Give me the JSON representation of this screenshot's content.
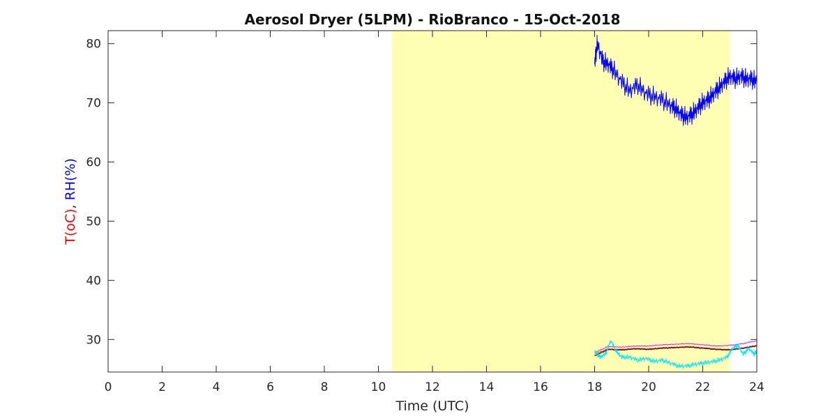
{
  "chart_data": {
    "type": "line",
    "title": "Aerosol Dryer (5LPM) - RioBranco - 15-Oct-2018",
    "xlabel": "Time (UTC)",
    "ylabel_parts": [
      {
        "text": "T(oC)",
        "color": "#ff0000"
      },
      {
        "text": ", ",
        "color": "#262626"
      },
      {
        "text": "RH(%)",
        "color": "#0000ff"
      }
    ],
    "xlim": [
      0,
      24
    ],
    "ylim": [
      24.5,
      82.2
    ],
    "x_ticks": [
      "0",
      "2",
      "4",
      "6",
      "8",
      "10",
      "12",
      "14",
      "16",
      "18",
      "20",
      "22",
      "24"
    ],
    "y_ticks": [
      "30",
      "40",
      "50",
      "60",
      "70",
      "80"
    ],
    "grid": false,
    "shaded_span": {
      "x": [
        10.5,
        23.0
      ],
      "color": "#ffffb3"
    },
    "series": [
      {
        "color": "#0000ff",
        "x": [
          18.0,
          18.1,
          18.3,
          18.5,
          18.7,
          19.0,
          19.3,
          19.6,
          19.9,
          20.2,
          20.5,
          20.8,
          21.0,
          21.2,
          21.4,
          21.6,
          21.8,
          22.0,
          22.2,
          22.4,
          22.6,
          22.8,
          23.0,
          23.2,
          23.4,
          23.6,
          23.8,
          24.0
        ],
        "y": [
          76.5,
          80.0,
          77.0,
          76.5,
          75.5,
          73.5,
          72.0,
          73.0,
          71.5,
          71.0,
          70.5,
          69.5,
          69.0,
          68.0,
          67.5,
          68.0,
          69.0,
          70.0,
          70.5,
          71.5,
          72.5,
          73.5,
          74.5,
          74.0,
          74.5,
          74.0,
          74.0,
          73.5
        ]
      },
      {
        "color": "#ff00ff",
        "x": [
          18.0,
          18.5,
          19.0,
          19.5,
          20.0,
          20.5,
          21.0,
          21.5,
          22.0,
          22.5,
          23.0,
          23.5,
          24.0
        ],
        "y": [
          27.8,
          28.8,
          28.7,
          28.9,
          28.9,
          29.1,
          29.2,
          29.3,
          29.1,
          28.9,
          29.0,
          29.3,
          29.8
        ]
      },
      {
        "color": "#000000",
        "x": [
          18.0,
          18.5,
          19.0,
          19.5,
          20.0,
          20.5,
          21.0,
          21.5,
          22.0,
          22.5,
          23.0,
          23.5,
          24.0
        ],
        "y": [
          27.2,
          28.3,
          28.2,
          28.4,
          28.3,
          28.5,
          28.6,
          28.7,
          28.5,
          28.3,
          28.2,
          28.5,
          28.9
        ]
      },
      {
        "color": "#e00000",
        "x": [
          18.0,
          18.5,
          19.0,
          19.5,
          20.0,
          20.5,
          21.0,
          21.5,
          22.0,
          22.5,
          23.0,
          23.5,
          24.0
        ],
        "y": [
          27.5,
          28.4,
          28.3,
          28.5,
          28.4,
          28.6,
          28.7,
          28.8,
          28.6,
          28.4,
          28.3,
          28.6,
          29.0
        ]
      },
      {
        "color": "#00e5ff",
        "x": [
          18.0,
          18.2,
          18.4,
          18.6,
          18.8,
          19.0,
          19.3,
          19.6,
          19.9,
          20.2,
          20.5,
          20.8,
          21.1,
          21.4,
          21.7,
          22.0,
          22.3,
          22.6,
          22.9,
          23.1,
          23.3,
          23.5,
          23.7,
          23.9,
          24.0
        ],
        "y": [
          28.0,
          27.0,
          27.5,
          29.8,
          28.0,
          27.0,
          27.0,
          26.5,
          26.8,
          26.3,
          26.5,
          26.0,
          25.5,
          25.5,
          25.8,
          26.0,
          26.2,
          26.5,
          27.0,
          28.5,
          29.0,
          27.5,
          28.5,
          27.5,
          28.0
        ]
      }
    ]
  }
}
